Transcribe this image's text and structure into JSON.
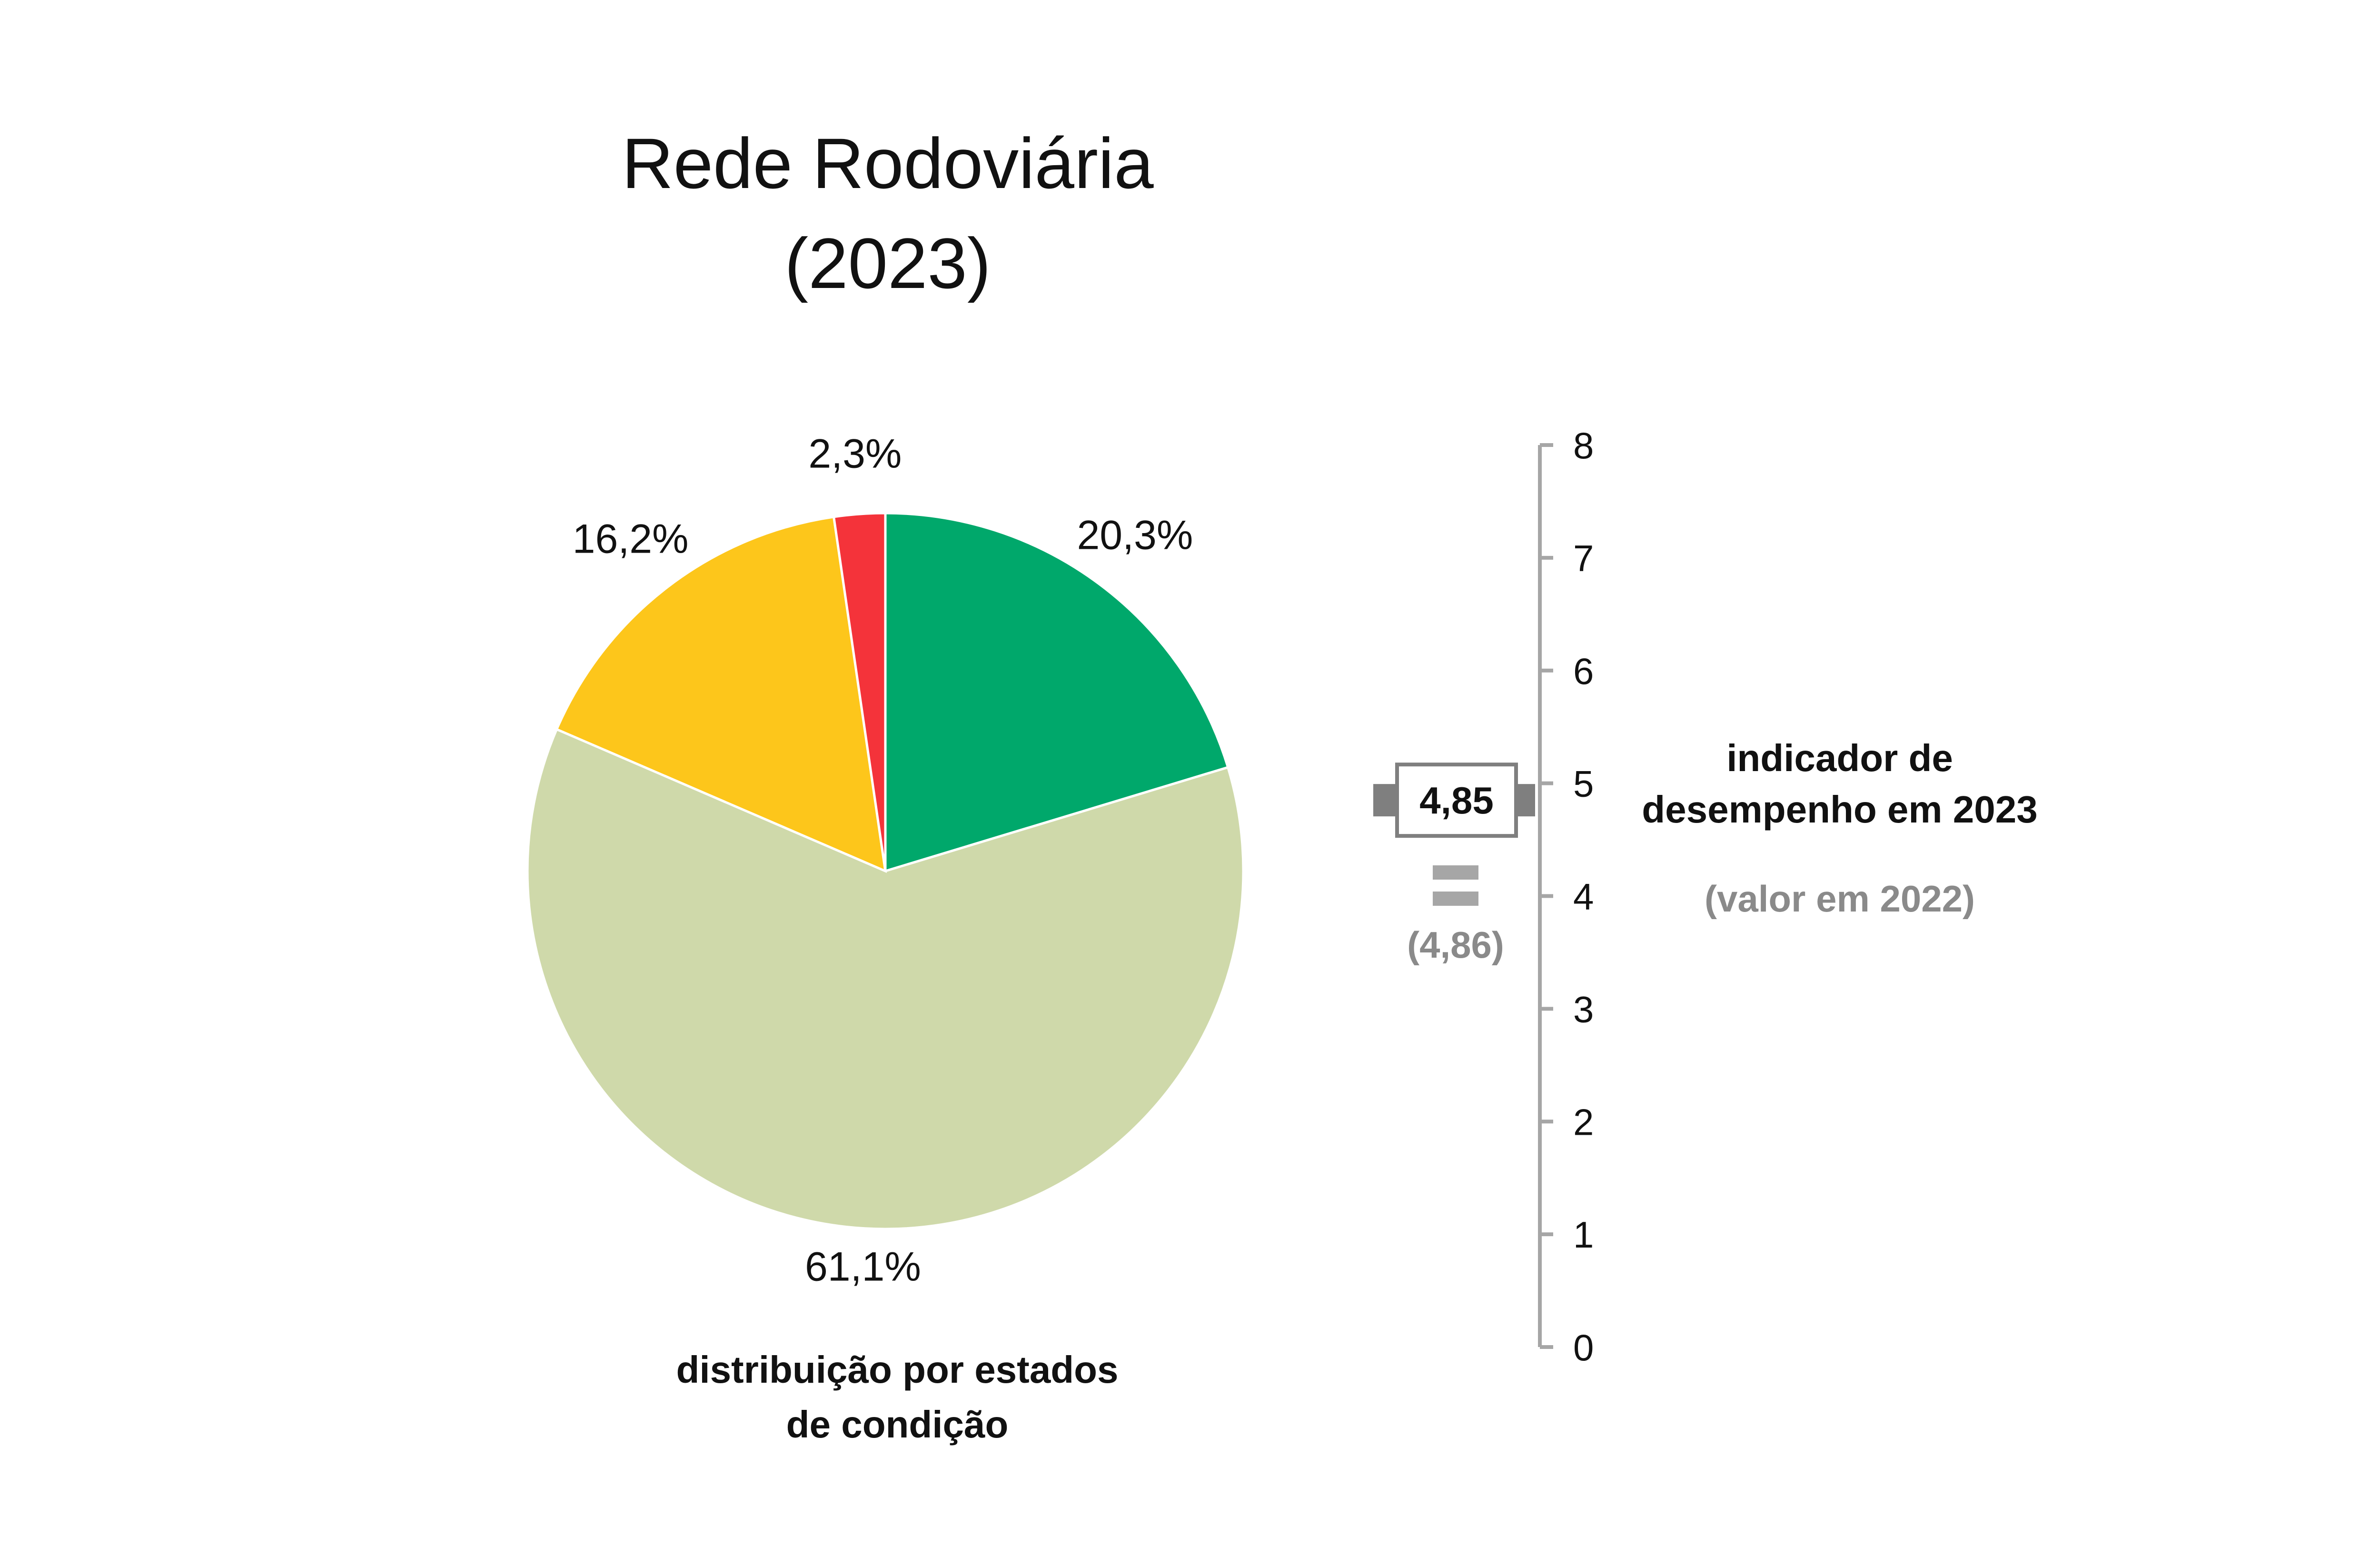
{
  "chart_data": [
    {
      "type": "pie",
      "title_line1": "Rede Rodoviária",
      "title_line2": "(2023)",
      "caption_line1": "distribuição por estados",
      "caption_line2": "de condição",
      "slices": [
        {
          "value": 20.3,
          "label": "20,3%",
          "color": "#00a86b"
        },
        {
          "value": 61.1,
          "label": "61,1%",
          "color": "#cfd9aa"
        },
        {
          "value": 16.2,
          "label": "16,2%",
          "color": "#fdc61b"
        },
        {
          "value": 2.3,
          "label": "2,3%",
          "color": "#f4333a"
        }
      ]
    },
    {
      "type": "gauge",
      "axis": {
        "min": 0,
        "max": 8,
        "ticks": [
          "0",
          "1",
          "2",
          "3",
          "4",
          "5",
          "6",
          "7",
          "8"
        ]
      },
      "current": {
        "value": 4.85,
        "label": "4,85"
      },
      "previous": {
        "value": 4.86,
        "label": "(4,86)"
      },
      "trend_icon": "equal-sign-icon",
      "label_line1": "indicador de",
      "label_line2": "desempenho em 2023",
      "sublabel": "(valor em 2022)",
      "colors": {
        "axis": "#a6a6a6",
        "marker": "#7f7f7f",
        "previous": "#a6a6a6"
      }
    }
  ]
}
